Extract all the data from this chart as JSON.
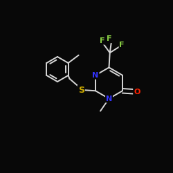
{
  "background_color": "#080808",
  "bond_color": "#d8d8d8",
  "bond_width": 1.4,
  "atom_colors": {
    "N": "#3333ff",
    "S": "#ccaa00",
    "O": "#ff2200",
    "F": "#88cc44",
    "C": "#d8d8d8"
  },
  "figsize": [
    2.5,
    2.5
  ],
  "dpi": 100,
  "xlim": [
    0,
    10
  ],
  "ylim": [
    0,
    10
  ]
}
